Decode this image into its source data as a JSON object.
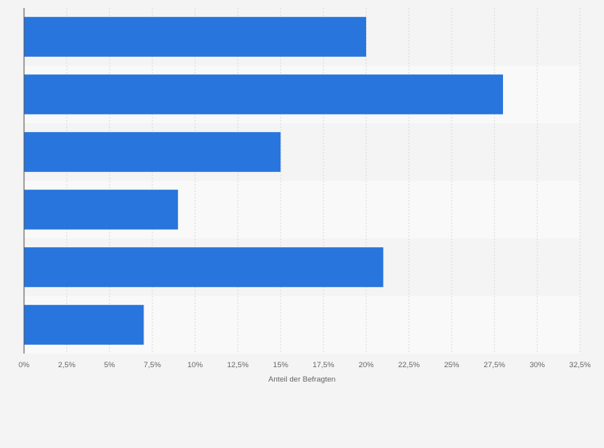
{
  "chart_data": {
    "type": "bar",
    "orientation": "horizontal",
    "categories": [
      "",
      "",
      "",
      "",
      "",
      ""
    ],
    "values": [
      20,
      28,
      15,
      9,
      21,
      7
    ],
    "xlabel": "Anteil der Befragten",
    "xlim": [
      0,
      32.5
    ],
    "x_ticks": [
      "0%",
      "2,5%",
      "5%",
      "7,5%",
      "10%",
      "12,5%",
      "15%",
      "17,5%",
      "20%",
      "22,5%",
      "25%",
      "27,5%",
      "30%",
      "32,5%"
    ],
    "grid": true,
    "bar_color": "#2775dd"
  }
}
